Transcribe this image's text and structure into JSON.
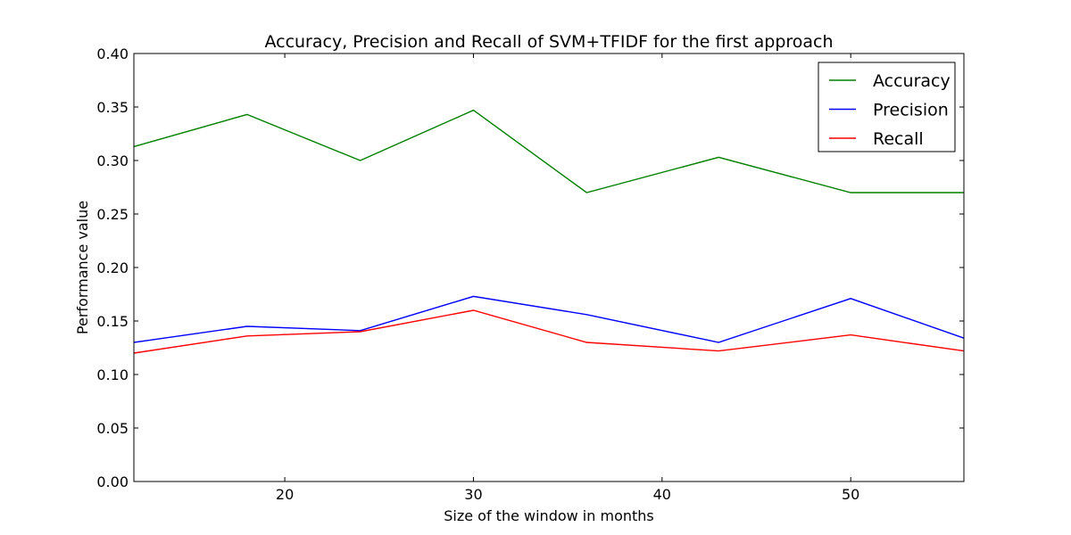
{
  "chart_data": {
    "type": "line",
    "title": "Accuracy, Precision and Recall of SVM+TFIDF for the first approach",
    "xlabel": "Size of the window in months",
    "ylabel": "Performance value",
    "xlim": [
      12,
      56
    ],
    "ylim": [
      0.0,
      0.4
    ],
    "xticks": [
      20,
      30,
      40,
      50
    ],
    "xtick_labels": [
      "20",
      "30",
      "40",
      "50"
    ],
    "yticks": [
      0.0,
      0.05,
      0.1,
      0.15,
      0.2,
      0.25,
      0.3,
      0.35,
      0.4
    ],
    "ytick_labels": [
      "0.00",
      "0.05",
      "0.10",
      "0.15",
      "0.20",
      "0.25",
      "0.30",
      "0.35",
      "0.40"
    ],
    "grid": false,
    "legend_position": "top-right",
    "x": [
      12,
      18,
      24,
      30,
      36,
      43,
      50,
      56
    ],
    "series": [
      {
        "name": "Accuracy",
        "color": "#008000",
        "values": [
          0.313,
          0.343,
          0.3,
          0.347,
          0.27,
          0.303,
          0.27,
          0.27
        ]
      },
      {
        "name": "Precision",
        "color": "#0000ff",
        "values": [
          0.13,
          0.145,
          0.141,
          0.173,
          0.156,
          0.13,
          0.171,
          0.134
        ]
      },
      {
        "name": "Recall",
        "color": "#ff0000",
        "values": [
          0.12,
          0.136,
          0.14,
          0.16,
          0.13,
          0.122,
          0.137,
          0.122
        ]
      }
    ]
  }
}
